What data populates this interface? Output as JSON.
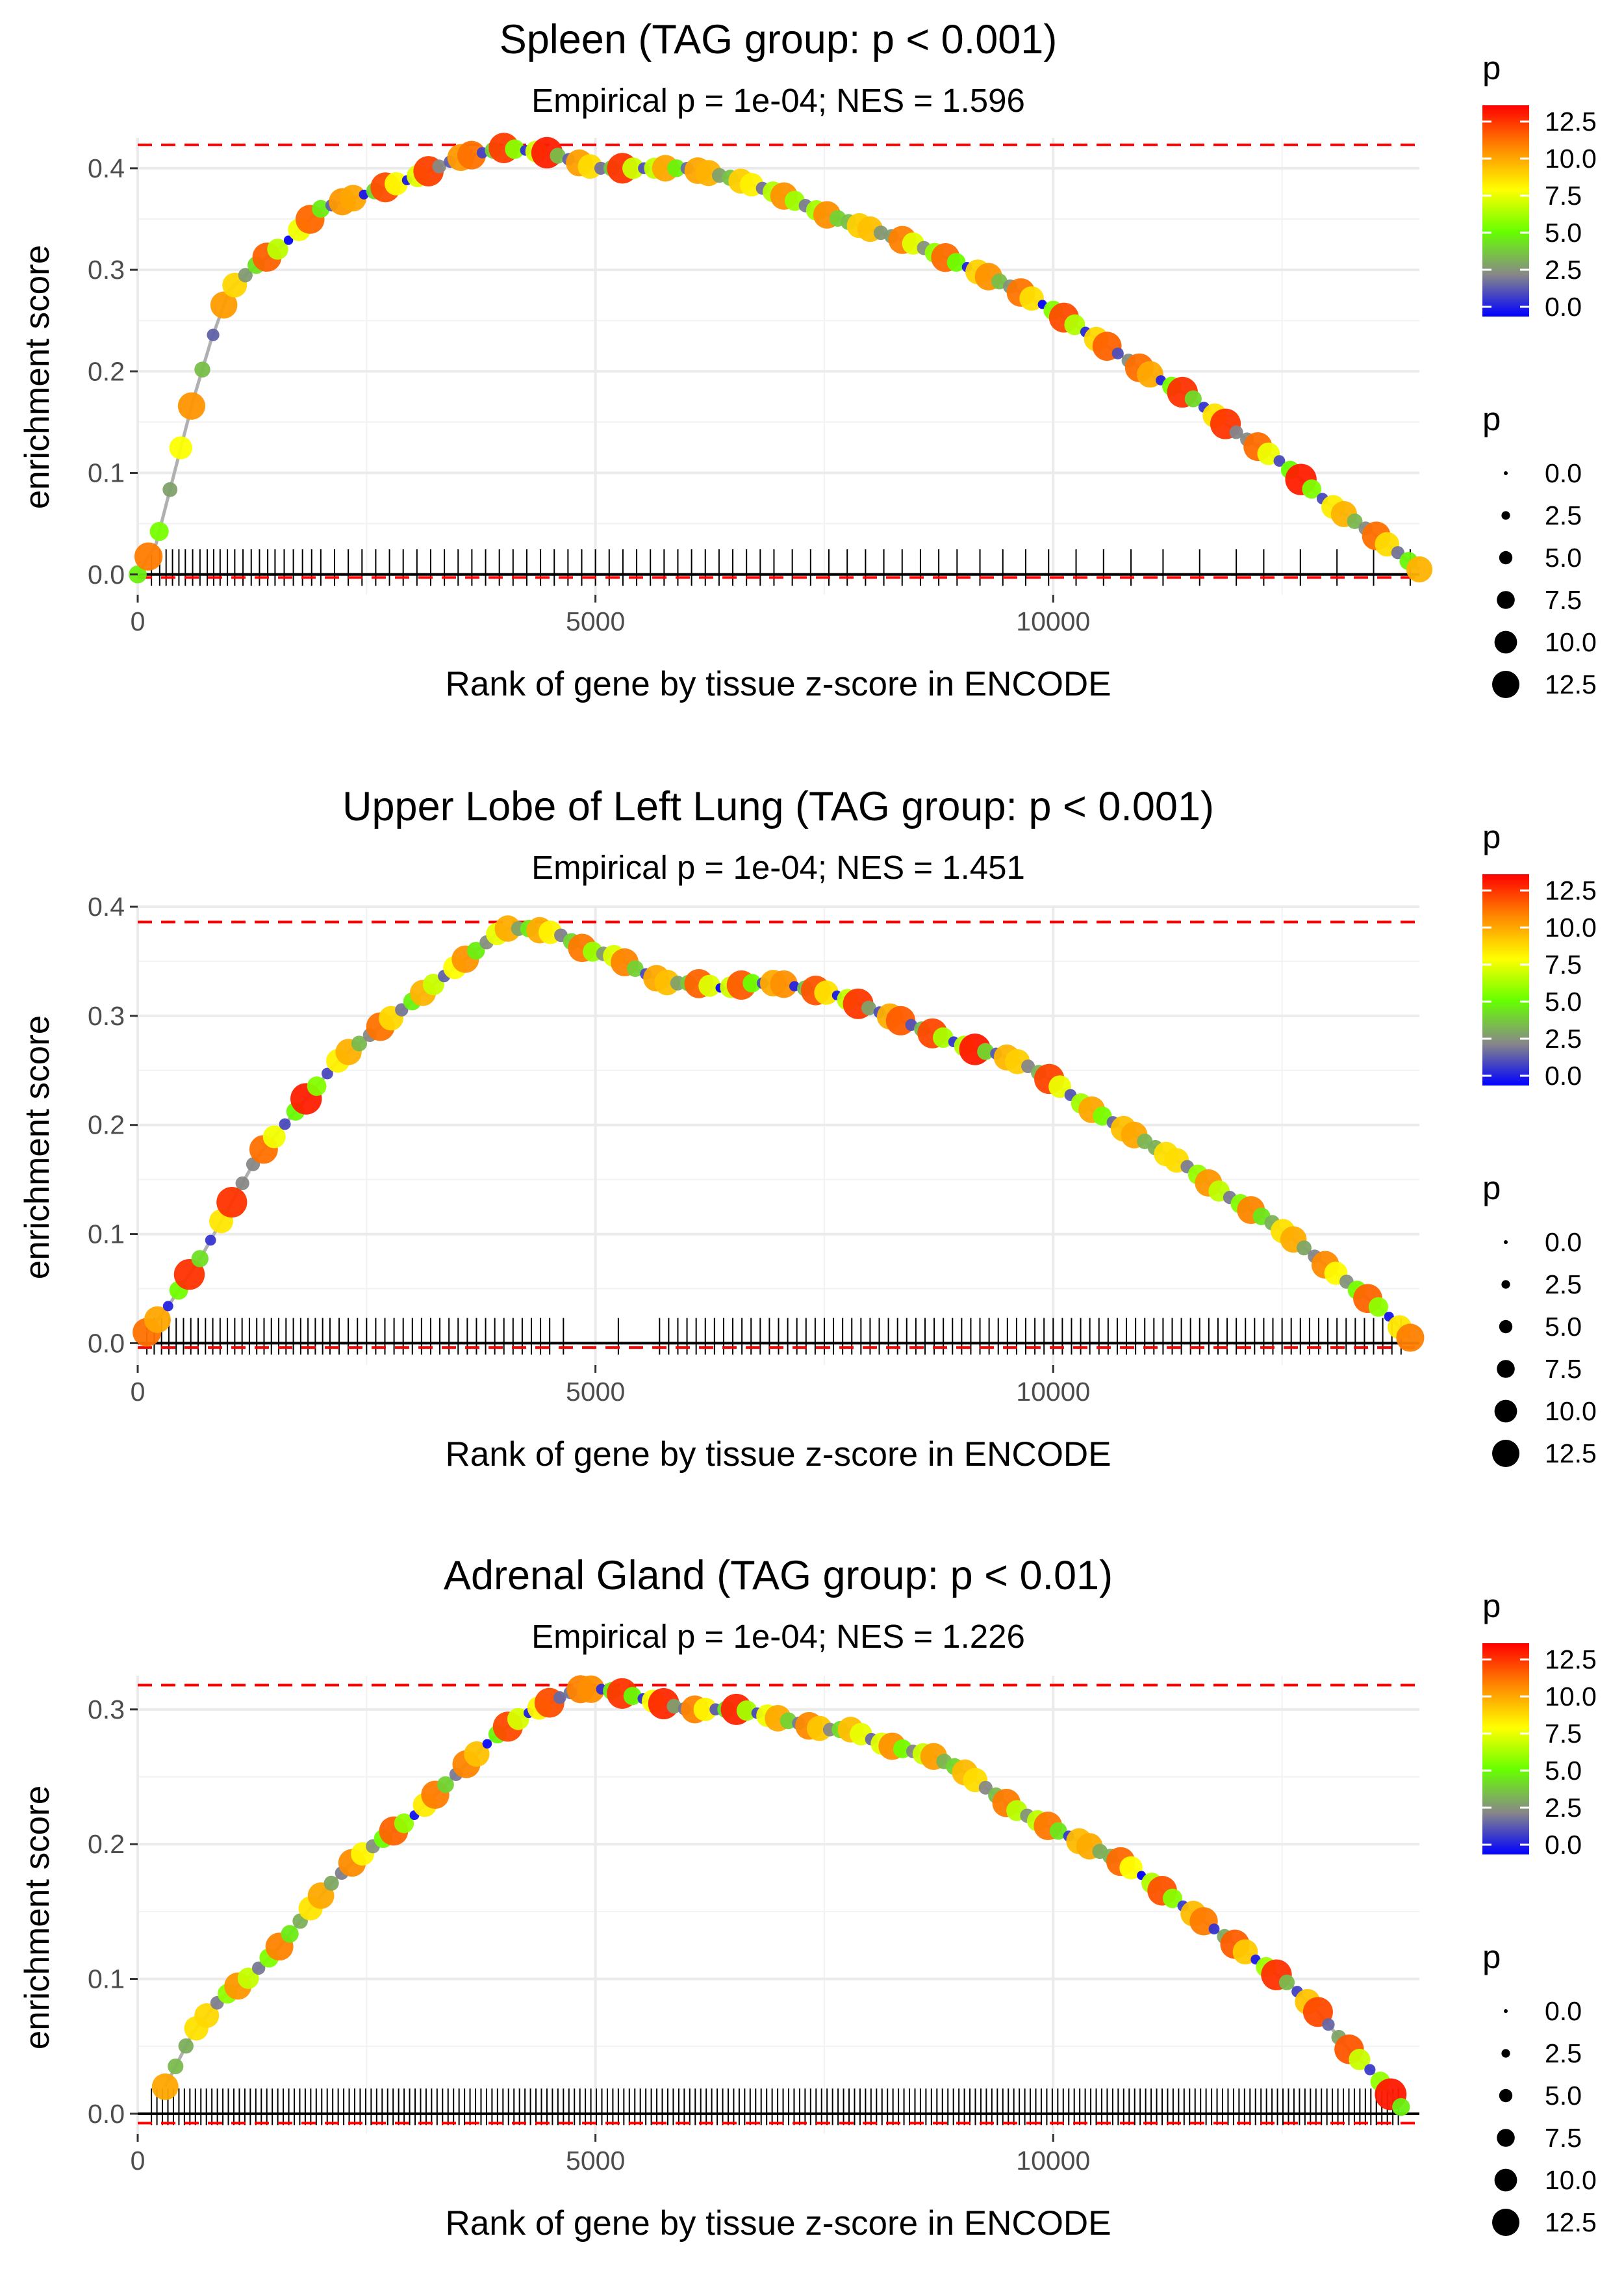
{
  "chart_data": [
    {
      "type": "scatter",
      "title": "Spleen (TAG group: p < 0.001)",
      "subtitle": "Empirical p = 1e-04; NES = 1.596",
      "xlabel": "Rank of gene by tissue z-score in ENCODE",
      "ylabel": "enrichment score",
      "xlim": [
        0,
        14000
      ],
      "ylim": [
        -0.02,
        0.43
      ],
      "xticks": [
        0,
        5000,
        10000
      ],
      "xtick_labels": [
        "0",
        "5000",
        "10000"
      ],
      "yticks": [
        0.0,
        0.1,
        0.2,
        0.3,
        0.4
      ],
      "ytick_labels": [
        "0.0",
        "0.1",
        "0.2",
        "0.3",
        "0.4"
      ],
      "max_es": 0.423,
      "min_es": -0.003,
      "curve": {
        "x": [
          0,
          200,
          400,
          600,
          800,
          1000,
          1300,
          1600,
          2000,
          2500,
          3000,
          3500,
          4000,
          4500,
          5000,
          5500,
          6000,
          6500,
          7000,
          7500,
          8000,
          8500,
          9000,
          9500,
          10000,
          10500,
          11000,
          11500,
          12000,
          12500,
          13000,
          13500,
          14000
        ],
        "y": [
          0.0,
          0.03,
          0.1,
          0.17,
          0.23,
          0.28,
          0.305,
          0.325,
          0.36,
          0.375,
          0.39,
          0.41,
          0.42,
          0.415,
          0.4,
          0.4,
          0.4,
          0.39,
          0.375,
          0.355,
          0.34,
          0.325,
          0.305,
          0.285,
          0.26,
          0.23,
          0.2,
          0.175,
          0.14,
          0.11,
          0.07,
          0.04,
          0.005
        ]
      },
      "hits_x": [
        150,
        240,
        310,
        380,
        450,
        520,
        600,
        680,
        760,
        830,
        900,
        980,
        1060,
        1150,
        1240,
        1330,
        1420,
        1500,
        1600,
        1700,
        1800,
        1900,
        2000,
        2150,
        2300,
        2450,
        2600,
        2750,
        2900,
        3050,
        3200,
        3350,
        3500,
        3650,
        3800,
        3950,
        4100,
        4250,
        4400,
        4550,
        4700,
        4850,
        5000,
        5150,
        5300,
        5450,
        5600,
        5750,
        5900,
        6050,
        6200,
        6350,
        6500,
        6650,
        6800,
        6950,
        7150,
        7350,
        7550,
        7750,
        7950,
        8150,
        8350,
        8550,
        8750,
        8950,
        9200,
        9450,
        9700,
        9950,
        10250,
        10550,
        10850,
        11200,
        11600,
        12000,
        12300,
        12700,
        13100,
        13500,
        13900
      ],
      "legend": {
        "color_title": "p",
        "color_ticks": [
          "12.5",
          "10.0",
          "7.5",
          "5.0",
          "2.5",
          "0.0"
        ],
        "size_title": "p",
        "size_ticks": [
          "0.0",
          "2.5",
          "5.0",
          "7.5",
          "10.0",
          "12.5"
        ]
      }
    },
    {
      "type": "scatter",
      "title": "Upper Lobe of Left Lung (TAG group: p < 0.001)",
      "subtitle": "Empirical p = 1e-04; NES = 1.451",
      "xlabel": "Rank of gene by tissue z-score in ENCODE",
      "ylabel": "enrichment score",
      "xlim": [
        0,
        14000
      ],
      "ylim": [
        -0.02,
        0.4
      ],
      "xticks": [
        0,
        5000,
        10000
      ],
      "xtick_labels": [
        "0",
        "5000",
        "10000"
      ],
      "yticks": [
        0.0,
        0.1,
        0.2,
        0.3,
        0.4
      ],
      "ytick_labels": [
        "0.0",
        "0.1",
        "0.2",
        "0.3",
        "0.4"
      ],
      "max_es": 0.386,
      "min_es": -0.004,
      "curve": {
        "x": [
          100,
          300,
          500,
          700,
          900,
          1100,
          1300,
          1600,
          1900,
          2200,
          2500,
          2800,
          3100,
          3400,
          3700,
          4000,
          4300,
          4600,
          4900,
          5200,
          5500,
          5800,
          6100,
          6400,
          6700,
          7000,
          7300,
          7600,
          7900,
          8200,
          8500,
          8800,
          9100,
          9400,
          9700,
          10000,
          10300,
          10600,
          10900,
          11200,
          11500,
          11800,
          12100,
          12400,
          12700,
          13000,
          13300,
          13600,
          13900
        ],
        "y": [
          0.01,
          0.03,
          0.055,
          0.08,
          0.11,
          0.14,
          0.17,
          0.2,
          0.23,
          0.26,
          0.28,
          0.3,
          0.32,
          0.34,
          0.36,
          0.38,
          0.38,
          0.375,
          0.36,
          0.355,
          0.34,
          0.33,
          0.33,
          0.325,
          0.33,
          0.33,
          0.325,
          0.32,
          0.31,
          0.3,
          0.29,
          0.28,
          0.27,
          0.265,
          0.255,
          0.24,
          0.22,
          0.205,
          0.19,
          0.175,
          0.16,
          0.14,
          0.125,
          0.11,
          0.09,
          0.07,
          0.05,
          0.03,
          0.005
        ]
      },
      "hits_x": [
        100,
        180,
        260,
        340,
        420,
        500,
        580,
        660,
        740,
        820,
        900,
        980,
        1060,
        1140,
        1220,
        1300,
        1380,
        1460,
        1540,
        1620,
        1700,
        1780,
        1860,
        1940,
        2020,
        2100,
        2200,
        2300,
        2400,
        2500,
        2600,
        2700,
        2800,
        2900,
        3000,
        3100,
        3200,
        3300,
        3400,
        3500,
        3600,
        3700,
        3800,
        3900,
        4000,
        4100,
        4200,
        4300,
        4400,
        4500,
        4650,
        5250,
        5700,
        5800,
        5900,
        6000,
        6100,
        6200,
        6300,
        6400,
        6500,
        6600,
        6700,
        6800,
        6900,
        7000,
        7100,
        7200,
        7300,
        7400,
        7500,
        7600,
        7700,
        7800,
        7900,
        8000,
        8100,
        8200,
        8300,
        8400,
        8500,
        8600,
        8700,
        8800,
        8900,
        9000,
        9100,
        9200,
        9300,
        9400,
        9500,
        9600,
        9700,
        9800,
        9900,
        10000,
        10100,
        10200,
        10300,
        10400,
        10500,
        10600,
        10700,
        10800,
        10900,
        11000,
        11100,
        11200,
        11300,
        11400,
        11500,
        11600,
        11700,
        11800,
        11900,
        12000,
        12100,
        12200,
        12300,
        12400,
        12500,
        12600,
        12700,
        12800,
        12900,
        13000,
        13100,
        13200,
        13300,
        13400,
        13500,
        13600,
        13700,
        13800
      ],
      "legend": {
        "color_title": "p",
        "color_ticks": [
          "12.5",
          "10.0",
          "7.5",
          "5.0",
          "2.5",
          "0.0"
        ],
        "size_title": "p",
        "size_ticks": [
          "0.0",
          "2.5",
          "5.0",
          "7.5",
          "10.0",
          "12.5"
        ]
      }
    },
    {
      "type": "scatter",
      "title": "Adrenal Gland (TAG group: p < 0.01)",
      "subtitle": "Empirical p = 1e-04; NES = 1.226",
      "xlabel": "Rank of gene by tissue z-score in ENCODE",
      "ylabel": "enrichment score",
      "xlim": [
        0,
        14000
      ],
      "ylim": [
        -0.015,
        0.325
      ],
      "xticks": [
        0,
        5000,
        10000
      ],
      "xtick_labels": [
        "0",
        "5000",
        "10000"
      ],
      "yticks": [
        0.0,
        0.1,
        0.2,
        0.3
      ],
      "ytick_labels": [
        "0.0",
        "0.1",
        "0.2",
        "0.3"
      ],
      "max_es": 0.318,
      "min_es": -0.007,
      "curve": {
        "x": [
          300,
          600,
          900,
          1200,
          1500,
          1800,
          2100,
          2400,
          2700,
          3000,
          3300,
          3600,
          3900,
          4200,
          4500,
          4800,
          5100,
          5400,
          5700,
          6000,
          6300,
          6600,
          6900,
          7200,
          7500,
          7800,
          8100,
          8400,
          8700,
          9000,
          9300,
          9600,
          9900,
          10200,
          10500,
          10800,
          11100,
          11400,
          11700,
          12000,
          12300,
          12600,
          12900,
          13200,
          13500,
          13800
        ],
        "y": [
          0.02,
          0.06,
          0.085,
          0.1,
          0.12,
          0.145,
          0.17,
          0.19,
          0.205,
          0.22,
          0.24,
          0.26,
          0.28,
          0.295,
          0.305,
          0.315,
          0.315,
          0.31,
          0.305,
          0.3,
          0.3,
          0.3,
          0.295,
          0.29,
          0.285,
          0.285,
          0.275,
          0.27,
          0.265,
          0.255,
          0.24,
          0.225,
          0.215,
          0.205,
          0.195,
          0.185,
          0.17,
          0.155,
          0.14,
          0.125,
          0.11,
          0.095,
          0.075,
          0.05,
          0.03,
          0.005
        ]
      },
      "hits_x": [
        150,
        210,
        270,
        330,
        390,
        450,
        510,
        570,
        630,
        690,
        750,
        810,
        870,
        930,
        990,
        1050,
        1110,
        1170,
        1230,
        1290,
        1350,
        1410,
        1470,
        1530,
        1590,
        1650,
        1710,
        1770,
        1830,
        1890,
        1950,
        2010,
        2070,
        2130,
        2190,
        2250,
        2310,
        2370,
        2430,
        2490,
        2550,
        2610,
        2670,
        2730,
        2790,
        2850,
        2910,
        2970,
        3030,
        3090,
        3150,
        3210,
        3270,
        3330,
        3390,
        3450,
        3510,
        3570,
        3630,
        3690,
        3750,
        3810,
        3870,
        3930,
        3990,
        4050,
        4110,
        4170,
        4230,
        4290,
        4350,
        4410,
        4470,
        4530,
        4590,
        4650,
        4710,
        4770,
        4830,
        4890,
        4950,
        5010,
        5070,
        5130,
        5190,
        5250,
        5310,
        5370,
        5430,
        5490,
        5550,
        5610,
        5670,
        5730,
        5790,
        5850,
        5910,
        5970,
        6030,
        6090,
        6150,
        6210,
        6270,
        6330,
        6390,
        6450,
        6510,
        6570,
        6630,
        6690,
        6750,
        6810,
        6870,
        6930,
        6990,
        7050,
        7110,
        7170,
        7230,
        7290,
        7350,
        7410,
        7470,
        7530,
        7590,
        7650,
        7710,
        7770,
        7830,
        7890,
        7950,
        8010,
        8070,
        8130,
        8190,
        8250,
        8310,
        8370,
        8430,
        8490,
        8550,
        8610,
        8670,
        8730,
        8790,
        8850,
        8910,
        8970,
        9030,
        9090,
        9150,
        9210,
        9270,
        9330,
        9390,
        9450,
        9510,
        9570,
        9630,
        9690,
        9750,
        9810,
        9870,
        9930,
        9990,
        10050,
        10110,
        10170,
        10230,
        10290,
        10350,
        10410,
        10470,
        10530,
        10590,
        10650,
        10710,
        10770,
        10830,
        10890,
        10950,
        11010,
        11070,
        11130,
        11190,
        11250,
        11310,
        11370,
        11430,
        11490,
        11550,
        11610,
        11670,
        11730,
        11790,
        11850,
        11910,
        11970,
        12030,
        12090,
        12150,
        12210,
        12270,
        12330,
        12390,
        12450,
        12510,
        12570,
        12630,
        12690,
        12750,
        12810,
        12870,
        12930,
        12990,
        13050,
        13110,
        13170,
        13230,
        13290,
        13350,
        13410,
        13470,
        13530,
        13590,
        13650,
        13710,
        13770
      ],
      "legend": {
        "color_title": "p",
        "color_ticks": [
          "12.5",
          "10.0",
          "7.5",
          "5.0",
          "2.5",
          "0.0"
        ],
        "size_title": "p",
        "size_ticks": [
          "0.0",
          "2.5",
          "5.0",
          "7.5",
          "10.0",
          "12.5"
        ]
      }
    }
  ]
}
